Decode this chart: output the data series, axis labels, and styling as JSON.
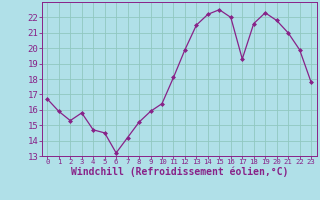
{
  "x": [
    0,
    1,
    2,
    3,
    4,
    5,
    6,
    7,
    8,
    9,
    10,
    11,
    12,
    13,
    14,
    15,
    16,
    17,
    18,
    19,
    20,
    21,
    22,
    23
  ],
  "y": [
    16.7,
    15.9,
    15.3,
    15.8,
    14.7,
    14.5,
    13.2,
    14.2,
    15.2,
    15.9,
    16.4,
    18.1,
    19.9,
    21.5,
    22.2,
    22.5,
    22.0,
    19.3,
    21.6,
    22.3,
    21.8,
    21.0,
    19.9,
    17.8
  ],
  "line_color": "#882288",
  "marker": "D",
  "marker_size": 2.0,
  "bg_color": "#b0e0e8",
  "grid_color": "#90c8c0",
  "xlabel": "Windchill (Refroidissement éolien,°C)",
  "ylim": [
    13,
    23.0
  ],
  "xlim": [
    -0.5,
    23.5
  ],
  "yticks": [
    13,
    14,
    15,
    16,
    17,
    18,
    19,
    20,
    21,
    22
  ],
  "xticks": [
    0,
    1,
    2,
    3,
    4,
    5,
    6,
    7,
    8,
    9,
    10,
    11,
    12,
    13,
    14,
    15,
    16,
    17,
    18,
    19,
    20,
    21,
    22,
    23
  ],
  "tick_color": "#882288",
  "label_color": "#882288",
  "xlabel_fontsize": 7.0,
  "ytick_fontsize": 6.5,
  "xtick_fontsize": 5.2,
  "spine_color": "#882288",
  "linewidth": 0.9
}
